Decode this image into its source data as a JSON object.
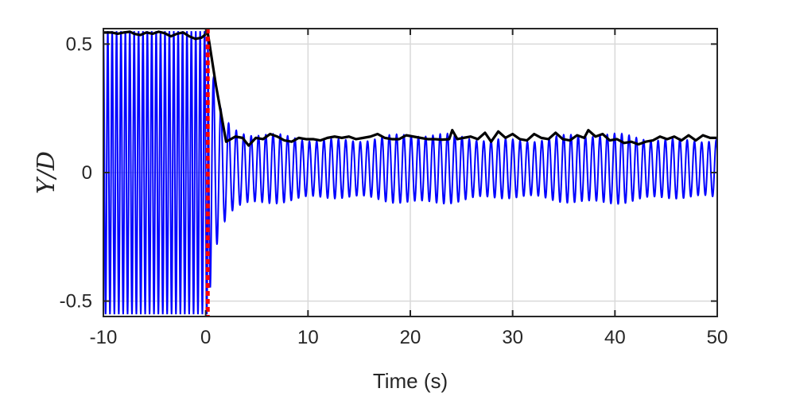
{
  "chart_data": {
    "type": "line",
    "xlabel": "Time (s)",
    "ylabel": "Y/D",
    "xlim": [
      -10,
      50
    ],
    "ylim": [
      -0.56,
      0.56
    ],
    "xticks": [
      {
        "v": -10,
        "label": "-10"
      },
      {
        "v": 0,
        "label": "0"
      },
      {
        "v": 10,
        "label": "10"
      },
      {
        "v": 20,
        "label": "20"
      },
      {
        "v": 30,
        "label": "30"
      },
      {
        "v": 40,
        "label": "40"
      },
      {
        "v": 50,
        "label": "50"
      }
    ],
    "yticks": [
      {
        "v": -0.5,
        "label": "-0.5"
      },
      {
        "v": 0,
        "label": "0"
      },
      {
        "v": 0.5,
        "label": "0.5"
      }
    ],
    "grid": true,
    "colors": {
      "oscillation": "#0000ff",
      "envelope": "#000000",
      "marker": "#ff0000",
      "grid": "#d9d9d9",
      "axes": "#262626"
    },
    "marker_line_x": 0.2,
    "oscillation": {
      "period_before": 0.43,
      "amplitude_before": 0.55,
      "period_after": 0.71,
      "peak_after": 0.135,
      "trough_after": -0.105
    },
    "envelope": {
      "x": [
        -10,
        -9.2,
        -8.6,
        -8.0,
        -7.4,
        -7.0,
        -6.4,
        -5.8,
        -5.2,
        -4.6,
        -4.0,
        -3.4,
        -2.8,
        -2.2,
        -1.6,
        -1.0,
        -0.4,
        0.2,
        1.0,
        2.0,
        2.9,
        3.6,
        4.2,
        4.9,
        5.6,
        6.3,
        7.0,
        7.7,
        8.4,
        9.1,
        9.8,
        10.5,
        11.2,
        11.9,
        12.6,
        13.3,
        14.0,
        14.7,
        15.4,
        16.1,
        16.8,
        17.5,
        18.2,
        18.9,
        19.6,
        20.3,
        21.0,
        21.7,
        22.4,
        23.1,
        23.8,
        24.1,
        24.6,
        25.2,
        25.9,
        26.6,
        27.3,
        27.9,
        28.6,
        29.3,
        30.0,
        30.7,
        31.4,
        32.1,
        32.8,
        33.5,
        34.2,
        34.9,
        35.6,
        36.3,
        37.0,
        37.4,
        38.1,
        38.8,
        39.5,
        40.2,
        40.9,
        41.6,
        42.3,
        43.0,
        43.7,
        44.4,
        45.1,
        45.8,
        46.5,
        47.2,
        47.9,
        48.6,
        49.3,
        50
      ],
      "y": [
        0.545,
        0.545,
        0.54,
        0.545,
        0.548,
        0.54,
        0.535,
        0.545,
        0.54,
        0.548,
        0.542,
        0.53,
        0.54,
        0.545,
        0.53,
        0.52,
        0.525,
        0.545,
        0.34,
        0.12,
        0.14,
        0.135,
        0.105,
        0.135,
        0.13,
        0.15,
        0.14,
        0.125,
        0.12,
        0.135,
        0.13,
        0.13,
        0.125,
        0.135,
        0.14,
        0.135,
        0.14,
        0.13,
        0.135,
        0.14,
        0.15,
        0.135,
        0.13,
        0.13,
        0.145,
        0.14,
        0.135,
        0.13,
        0.13,
        0.128,
        0.13,
        0.165,
        0.13,
        0.135,
        0.14,
        0.13,
        0.155,
        0.12,
        0.16,
        0.135,
        0.15,
        0.13,
        0.125,
        0.15,
        0.135,
        0.13,
        0.155,
        0.13,
        0.125,
        0.145,
        0.135,
        0.165,
        0.14,
        0.15,
        0.125,
        0.13,
        0.115,
        0.12,
        0.11,
        0.12,
        0.125,
        0.14,
        0.13,
        0.14,
        0.125,
        0.145,
        0.125,
        0.145,
        0.135,
        0.135
      ]
    }
  }
}
